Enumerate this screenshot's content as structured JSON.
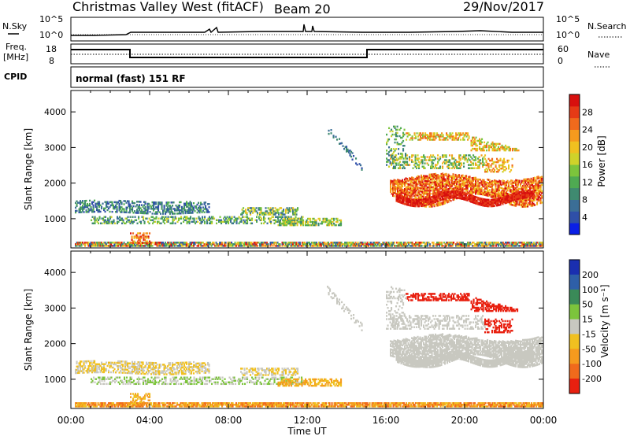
{
  "header": {
    "title": "Christmas Valley West (fitACF)",
    "beam": "Beam 20",
    "date": "29/Nov/2017"
  },
  "noise_panel": {
    "left_label": "N.Sky",
    "right_label": "N.Search",
    "left_ticks": [
      "10^5",
      "10^0"
    ],
    "right_ticks": [
      "10^5",
      "10^0"
    ]
  },
  "freq_panel": {
    "left_label_line1": "Freq.",
    "left_label_line2": "[MHz]",
    "right_label": "Nave",
    "left_ticks": [
      "18",
      "8"
    ],
    "right_ticks": [
      "60",
      "0"
    ]
  },
  "cpid": {
    "label": "CPID",
    "value": "normal (fast) 151 RF"
  },
  "chart_data": [
    {
      "type": "heatmap",
      "title": "",
      "xlabel": "",
      "ylabel": "Slant Range [km]",
      "x_ticks": [
        "00:00",
        "04:00",
        "08:00",
        "12:00",
        "16:00",
        "20:00",
        "00:00"
      ],
      "y_ticks": [
        1000,
        2000,
        3000,
        4000
      ],
      "ylim": [
        180,
        4600
      ],
      "colorbar": {
        "label": "Power [dB]",
        "ticks": [
          4,
          8,
          12,
          16,
          20,
          24,
          28
        ],
        "range": [
          0,
          32
        ],
        "colors": [
          "#0a1fe6",
          "#2f4fa8",
          "#3b6e96",
          "#3f8a70",
          "#4faa52",
          "#7cc43c",
          "#cfd22a",
          "#f0c020",
          "#f59a1e",
          "#f06a1c",
          "#e63a16",
          "#d8100e"
        ]
      }
    },
    {
      "type": "heatmap",
      "title": "",
      "xlabel": "Time UT",
      "ylabel": "Slant Range [km]",
      "x_ticks": [
        "00:00",
        "04:00",
        "08:00",
        "12:00",
        "16:00",
        "20:00",
        "00:00"
      ],
      "y_ticks": [
        1000,
        2000,
        3000,
        4000
      ],
      "ylim": [
        180,
        4600
      ],
      "colorbar": {
        "label": "Velocity [m s⁻¹]",
        "ticks": [
          "200",
          "100",
          "50",
          "15",
          "-15",
          "-50",
          "-100",
          "-200"
        ],
        "colors": [
          "#1a2fb0",
          "#2e5fa8",
          "#3a8a58",
          "#7cc43c",
          "#c8c8c0",
          "#f0c020",
          "#f59a1e",
          "#f06a1c",
          "#e82010"
        ]
      }
    }
  ]
}
